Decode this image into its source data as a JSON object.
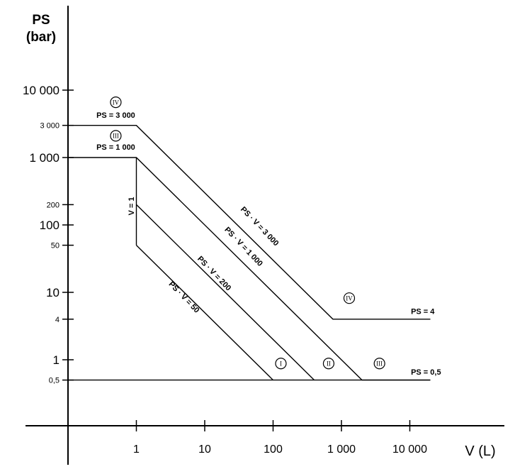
{
  "chart_data": {
    "type": "line",
    "title": "",
    "ylabel_line1": "PS",
    "ylabel_line2": "(bar)",
    "xlabel": "V (L)",
    "x_scale": "log",
    "y_scale": "log",
    "x_ticks": [
      {
        "value": 1,
        "label": "1"
      },
      {
        "value": 10,
        "label": "10"
      },
      {
        "value": 100,
        "label": "100"
      },
      {
        "value": 1000,
        "label": "1 000"
      },
      {
        "value": 10000,
        "label": "10 000"
      }
    ],
    "y_ticks": [
      {
        "value": 0.5,
        "label": "0,5",
        "size": "small"
      },
      {
        "value": 1,
        "label": "1",
        "size": "big"
      },
      {
        "value": 4,
        "label": "4",
        "size": "small"
      },
      {
        "value": 10,
        "label": "10",
        "size": "big"
      },
      {
        "value": 50,
        "label": "50",
        "size": "small"
      },
      {
        "value": 100,
        "label": "100",
        "size": "big"
      },
      {
        "value": 200,
        "label": "200",
        "size": "small"
      },
      {
        "value": 1000,
        "label": "1 000",
        "size": "big"
      },
      {
        "value": 3000,
        "label": "3 000",
        "size": "small"
      },
      {
        "value": 10000,
        "label": "10 000",
        "size": "big"
      }
    ],
    "series": [
      {
        "points": [
          [
            0.1,
            3000
          ],
          [
            1,
            3000
          ],
          [
            750,
            4
          ],
          [
            20000,
            4
          ]
        ]
      },
      {
        "points": [
          [
            0.1,
            1000
          ],
          [
            1,
            1000
          ],
          [
            2000,
            0.5
          ],
          [
            20000,
            0.5
          ]
        ]
      },
      {
        "points": [
          [
            1,
            1000
          ],
          [
            1,
            50
          ]
        ]
      },
      {
        "points": [
          [
            1,
            200
          ],
          [
            400,
            0.5
          ]
        ]
      },
      {
        "points": [
          [
            1,
            50
          ],
          [
            100,
            0.5
          ]
        ]
      },
      {
        "points": [
          [
            0.1,
            0.5
          ],
          [
            20000,
            0.5
          ]
        ]
      }
    ],
    "line_labels": [
      {
        "text": "PS = 3 000",
        "x": 0.5,
        "y": 3900
      },
      {
        "text": "PS = 1 000",
        "x": 0.5,
        "y": 1300
      },
      {
        "text": "PS = 4",
        "x": 9000,
        "y": 4.8
      },
      {
        "text": "PS = 0,5",
        "x": 9000,
        "y": 0.6
      }
    ],
    "rotated_labels": [
      {
        "text": "V = 1",
        "x": 0.92,
        "y": 190,
        "angle": -90
      },
      {
        "text": "PS · V = 3 000",
        "x": 60,
        "y": 90,
        "angle": 46
      },
      {
        "text": "PS · V = 1 000",
        "x": 35,
        "y": 45,
        "angle": 46
      },
      {
        "text": "PS · V = 200",
        "x": 13,
        "y": 18,
        "angle": 46
      },
      {
        "text": "PS · V = 50",
        "x": 4.7,
        "y": 8,
        "angle": 46
      }
    ],
    "category_markers": [
      {
        "text": "IV",
        "x": 0.5,
        "y": 6600
      },
      {
        "text": "III",
        "x": 0.5,
        "y": 2100
      },
      {
        "text": "IV",
        "x": 1300,
        "y": 8.2
      },
      {
        "text": "I",
        "x": 130,
        "y": 0.88
      },
      {
        "text": "II",
        "x": 650,
        "y": 0.88
      },
      {
        "text": "III",
        "x": 3600,
        "y": 0.88
      }
    ]
  }
}
